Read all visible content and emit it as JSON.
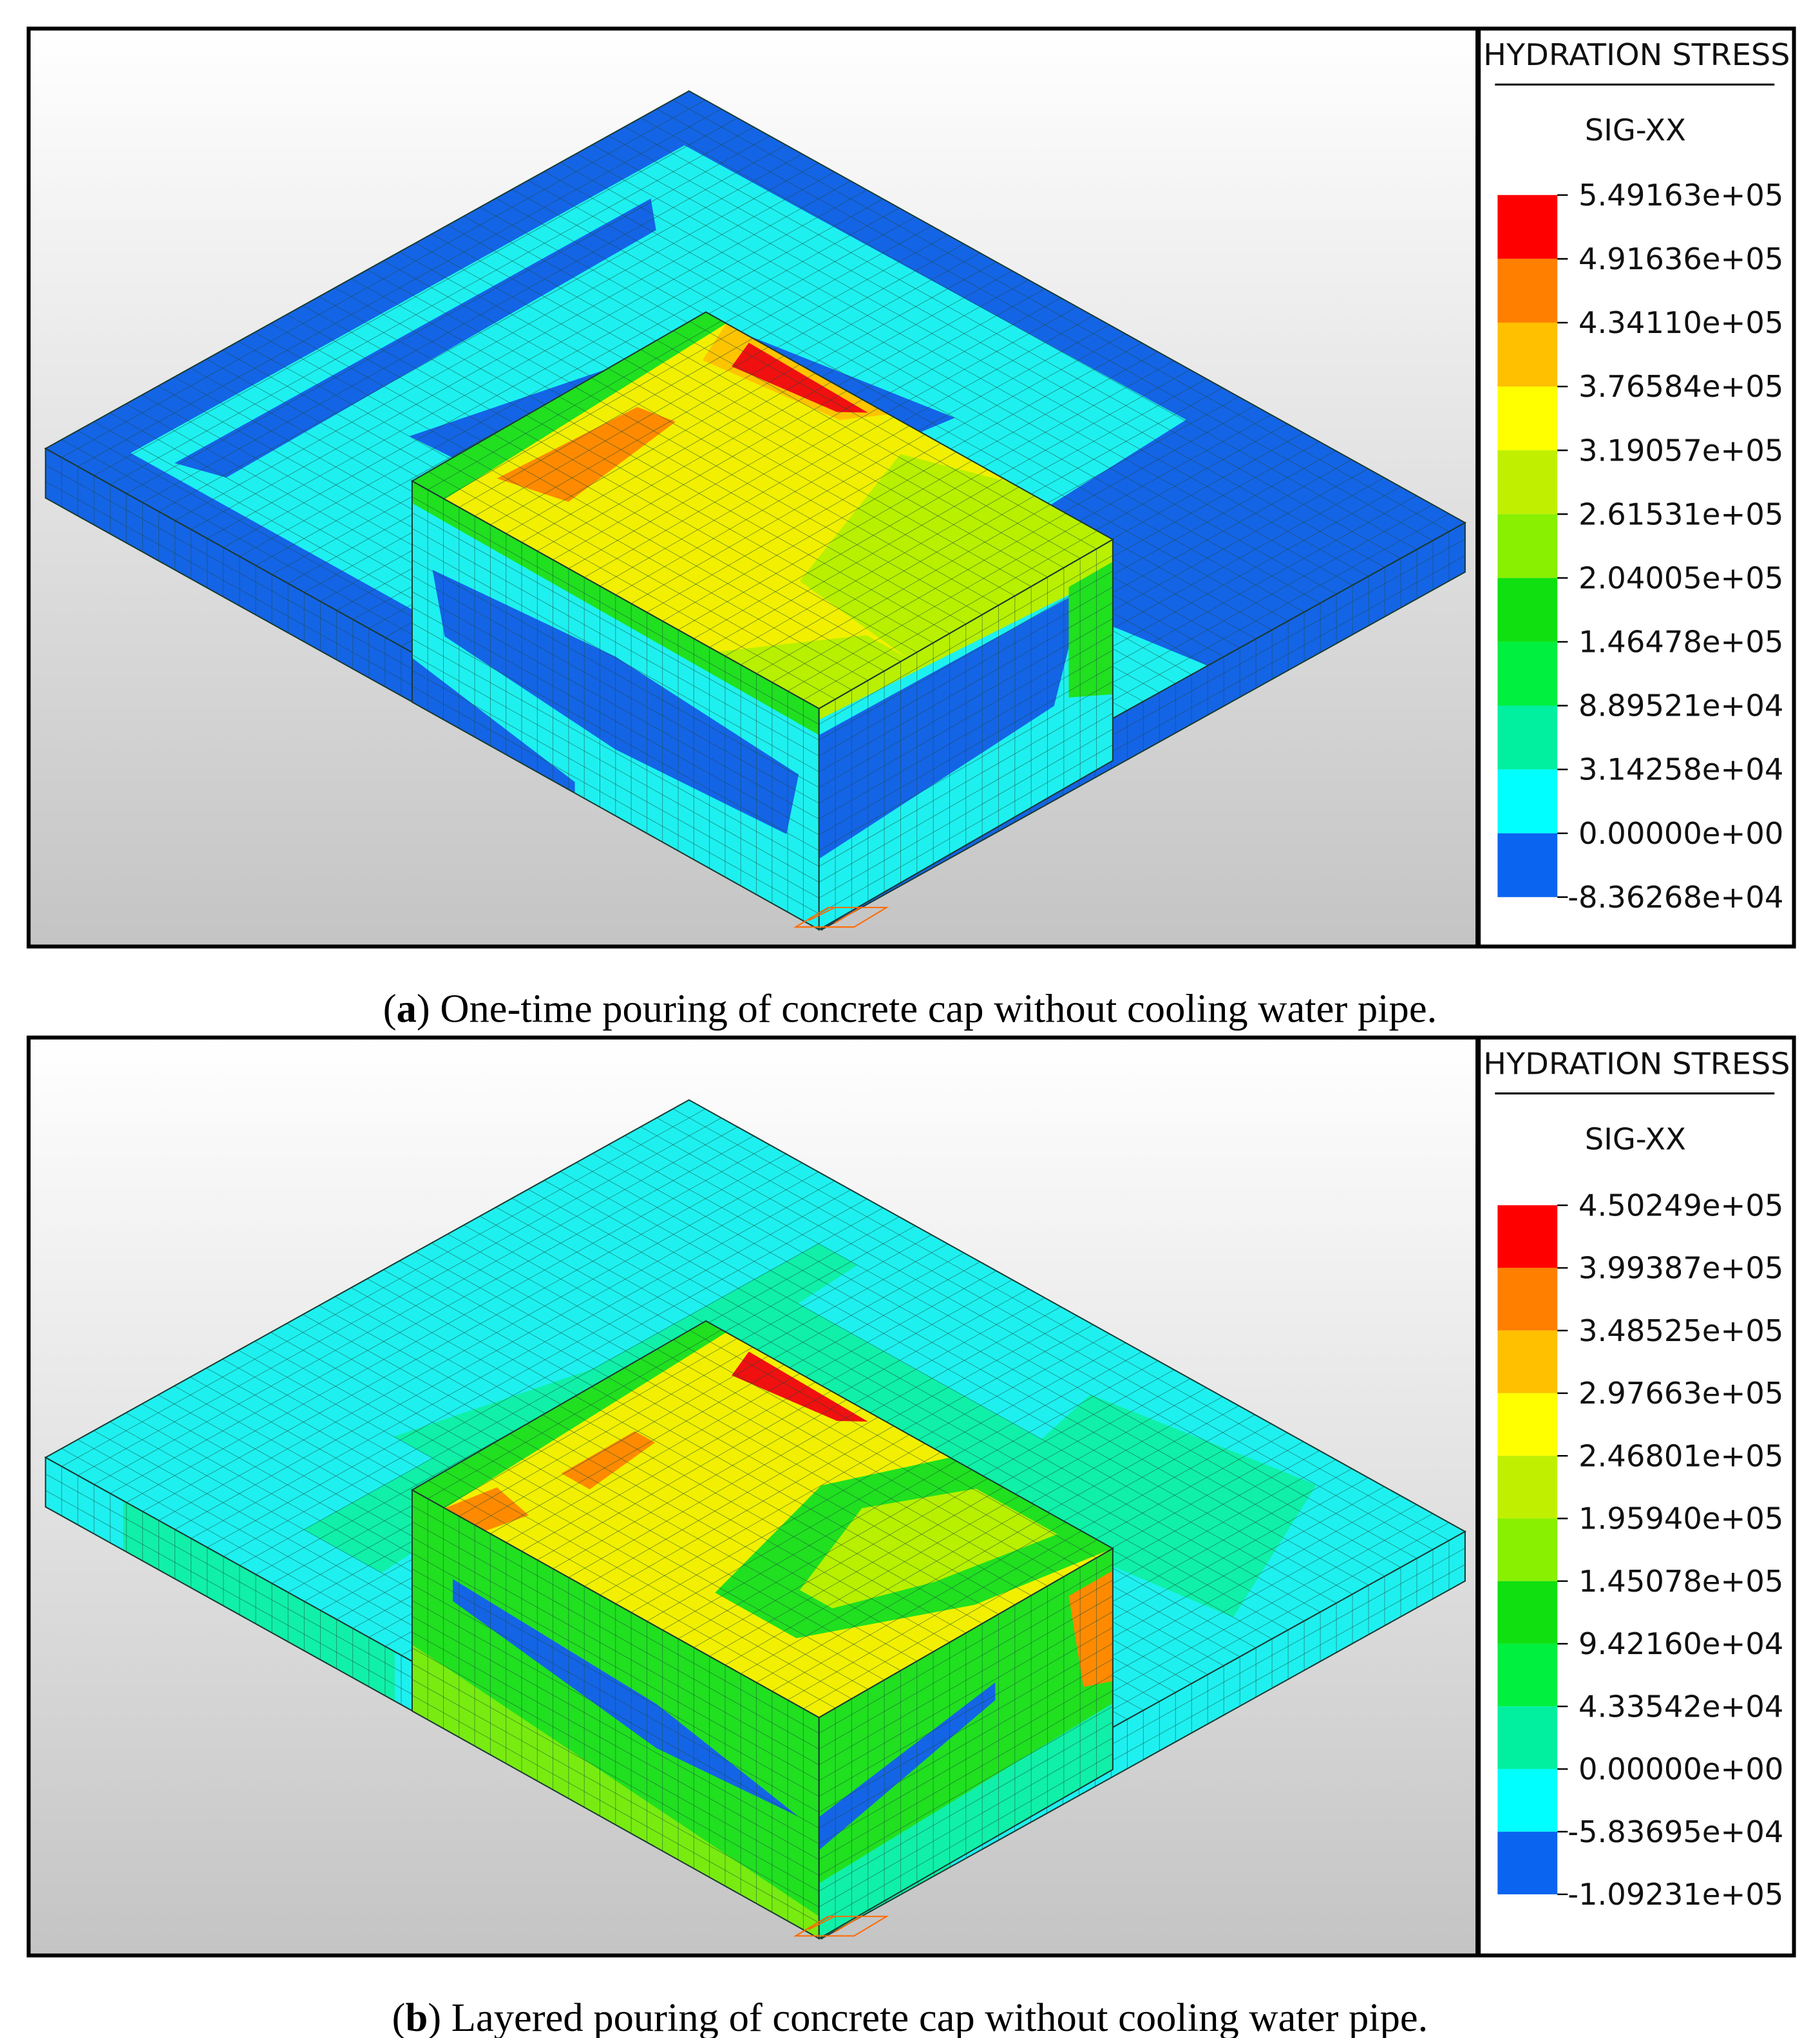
{
  "panels": [
    {
      "legend": {
        "title": "HYDRATION STRESS",
        "component": "SIG-XX",
        "levels": [
          "5.49163e+05",
          "4.91636e+05",
          "4.34110e+05",
          "3.76584e+05",
          "3.19057e+05",
          "2.61531e+05",
          "2.04005e+05",
          "1.46478e+05",
          "8.89521e+04",
          "3.14258e+04",
          "0.00000e+00",
          "-8.36268e+04"
        ],
        "colors": [
          "#ff0000",
          "#ff8000",
          "#ffc000",
          "#ffff00",
          "#c0f000",
          "#88f000",
          "#10e010",
          "#00f040",
          "#00f0a0",
          "#00ffff",
          "#0a64f0"
        ]
      },
      "caption": [
        "(",
        "a",
        ") One-time pouring of concrete cap without cooling water pipe."
      ]
    },
    {
      "legend": {
        "title": "HYDRATION STRESS",
        "component": "SIG-XX",
        "levels": [
          "4.50249e+05",
          "3.99387e+05",
          "3.48525e+05",
          "2.97663e+05",
          "2.46801e+05",
          "1.95940e+05",
          "1.45078e+05",
          "9.42160e+04",
          "4.33542e+04",
          "0.00000e+00",
          "-5.83695e+04",
          "-1.09231e+05"
        ],
        "colors": [
          "#ff0000",
          "#ff8000",
          "#ffc000",
          "#ffff00",
          "#c0f000",
          "#88f000",
          "#10e010",
          "#00f040",
          "#00f0a0",
          "#00ffff",
          "#0a64f0"
        ]
      },
      "caption": [
        "(",
        "b",
        ") Layered pouring of concrete cap without cooling water pipe."
      ]
    }
  ]
}
